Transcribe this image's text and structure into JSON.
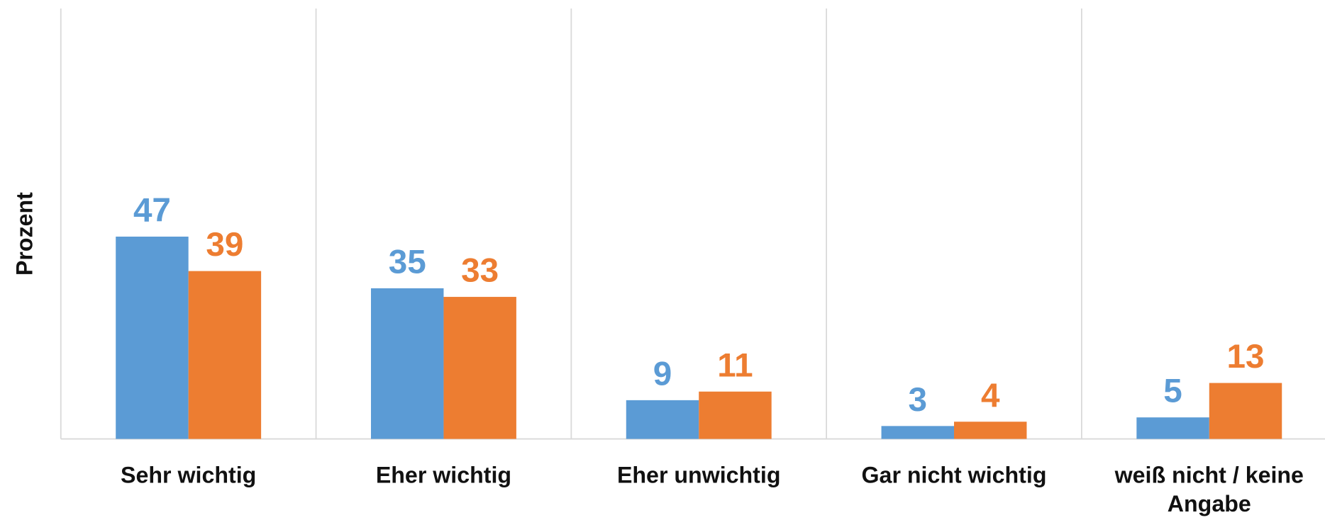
{
  "chart_data": {
    "type": "bar",
    "y_label": "Prozent",
    "categories": [
      "Sehr wichtig",
      "Eher wichtig",
      "Eher unwichtig",
      "Gar nicht wichtig",
      "weiß nicht / keine Angabe"
    ],
    "series": [
      {
        "color": "#5b9bd5",
        "values": [
          47,
          35,
          9,
          3,
          5
        ]
      },
      {
        "color": "#ed7d31",
        "values": [
          39,
          33,
          11,
          4,
          13
        ]
      }
    ],
    "ylim": [
      0,
      100
    ]
  }
}
